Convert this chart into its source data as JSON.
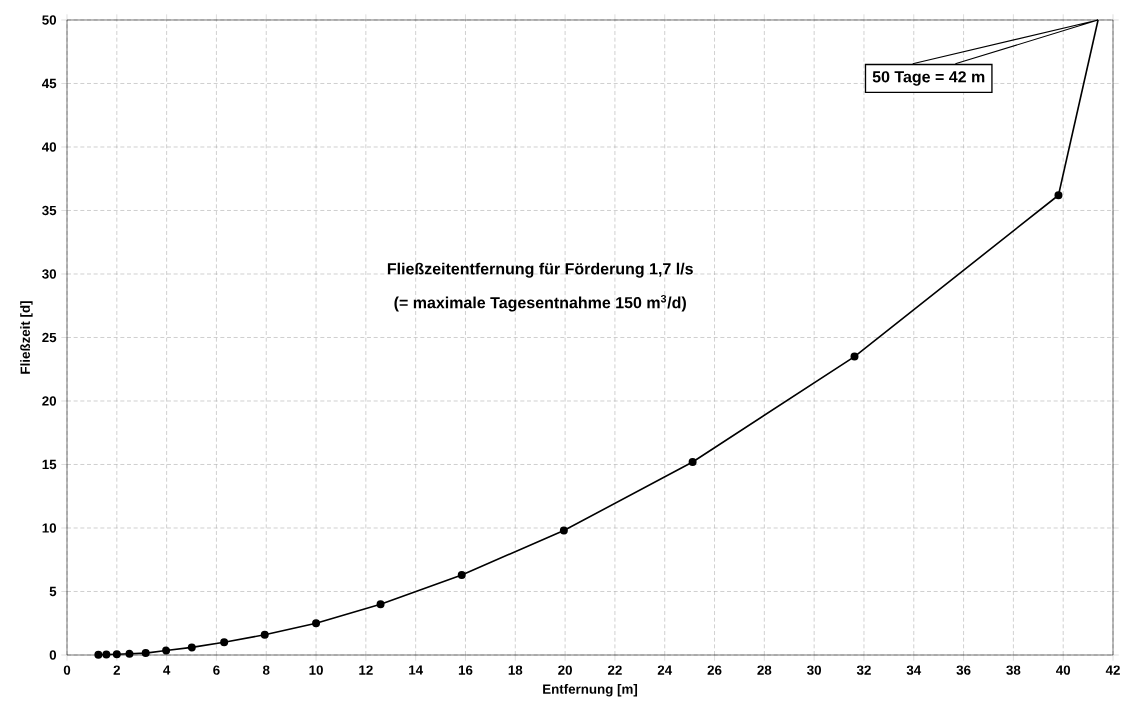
{
  "chart_data": {
    "type": "line",
    "xlabel": "Entfernung [m]",
    "ylabel": "Fließzeit [d]",
    "xlim": [
      0,
      42
    ],
    "xticks": [
      0,
      2,
      4,
      6,
      8,
      10,
      12,
      14,
      16,
      18,
      20,
      22,
      24,
      26,
      28,
      30,
      32,
      34,
      36,
      38,
      40,
      42
    ],
    "ylim": [
      0,
      50
    ],
    "yticks": [
      0,
      5,
      10,
      15,
      20,
      25,
      30,
      35,
      40,
      45,
      50
    ],
    "grid": true,
    "series": [
      {
        "color": "#000000",
        "marker": "circle",
        "x": [
          1.26,
          1.58,
          2.0,
          2.51,
          3.16,
          3.98,
          5.01,
          6.31,
          7.94,
          10.0,
          12.59,
          15.85,
          19.95,
          25.12,
          31.62,
          39.81
        ],
        "values": [
          0.02,
          0.04,
          0.06,
          0.1,
          0.15,
          0.35,
          0.6,
          1.0,
          1.6,
          2.5,
          4.0,
          6.3,
          9.8,
          15.2,
          23.5,
          36.2
        ]
      },
      {
        "color": "#000000",
        "marker": "none",
        "x": [
          39.81,
          41.4
        ],
        "values": [
          36.2,
          50
        ]
      }
    ],
    "annotations": [
      "50 Tage = 42 m",
      "Fließzeitentfernung für Förderung 1,7 l/s",
      "(= maximale Tagesentnahme  150 m$^{3}$/d)"
    ]
  }
}
